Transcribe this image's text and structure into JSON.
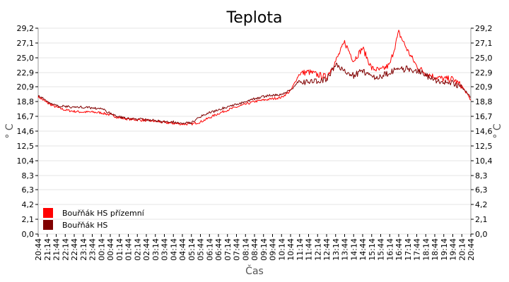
{
  "chart_data": {
    "type": "line",
    "title": "Teplota",
    "xlabel": "Čas",
    "ylabel": "° C",
    "ylim": [
      0,
      29.2
    ],
    "yticks": [
      "29,2",
      "27,1",
      "25,0",
      "22,9",
      "20,9",
      "18,8",
      "16,7",
      "14,6",
      "12,5",
      "10,4",
      "8,3",
      "6,3",
      "4,2",
      "2,1",
      "0,0"
    ],
    "ytick_values": [
      29.2,
      27.1,
      25.0,
      22.9,
      20.9,
      18.8,
      16.7,
      14.6,
      12.5,
      10.4,
      8.3,
      6.3,
      4.2,
      2.1,
      0.0
    ],
    "categories": [
      "20:44",
      "21:14",
      "21:44",
      "22:14",
      "22:44",
      "23:14",
      "23:44",
      "00:14",
      "00:44",
      "01:14",
      "01:44",
      "02:14",
      "02:44",
      "03:14",
      "03:44",
      "04:14",
      "04:44",
      "05:14",
      "05:44",
      "06:14",
      "06:44",
      "07:14",
      "07:44",
      "08:14",
      "08:44",
      "09:14",
      "09:44",
      "10:14",
      "10:44",
      "11:14",
      "11:44",
      "12:14",
      "12:44",
      "13:14",
      "13:44",
      "14:14",
      "14:44",
      "15:14",
      "15:44",
      "16:14",
      "16:44",
      "17:14",
      "17:44",
      "18:14",
      "18:44",
      "19:14",
      "19:44",
      "20:14",
      "20:44"
    ],
    "grid": true,
    "legend_position": "bottom-left",
    "series": [
      {
        "name": "Bouřňák HS přízemní",
        "color": "#ff0000",
        "values": [
          19.5,
          18.6,
          18.0,
          17.6,
          17.4,
          17.3,
          17.3,
          17.2,
          16.9,
          16.5,
          16.3,
          16.2,
          16.1,
          16.0,
          15.8,
          15.7,
          15.6,
          15.6,
          15.9,
          16.5,
          17.1,
          17.6,
          18.0,
          18.4,
          18.8,
          19.0,
          19.2,
          19.4,
          20.3,
          22.8,
          23.0,
          22.6,
          22.3,
          24.5,
          27.2,
          24.6,
          26.4,
          23.5,
          23.2,
          24.0,
          28.6,
          26.0,
          23.8,
          22.8,
          22.3,
          22.0,
          22.0,
          21.0,
          19.0
        ]
      },
      {
        "name": "Bouřňák HS",
        "color": "#800000",
        "values": [
          19.7,
          18.8,
          18.2,
          18.1,
          18.0,
          18.0,
          17.9,
          17.8,
          17.1,
          16.6,
          16.4,
          16.3,
          16.2,
          16.1,
          15.9,
          15.9,
          15.8,
          15.8,
          16.7,
          17.2,
          17.6,
          18.1,
          18.4,
          18.7,
          19.2,
          19.5,
          19.7,
          19.8,
          20.4,
          21.8,
          21.5,
          21.7,
          22.0,
          24.0,
          23.2,
          22.5,
          23.2,
          22.3,
          22.4,
          22.9,
          23.4,
          23.4,
          23.2,
          22.5,
          21.8,
          21.6,
          21.4,
          20.9,
          19.4
        ]
      }
    ]
  }
}
